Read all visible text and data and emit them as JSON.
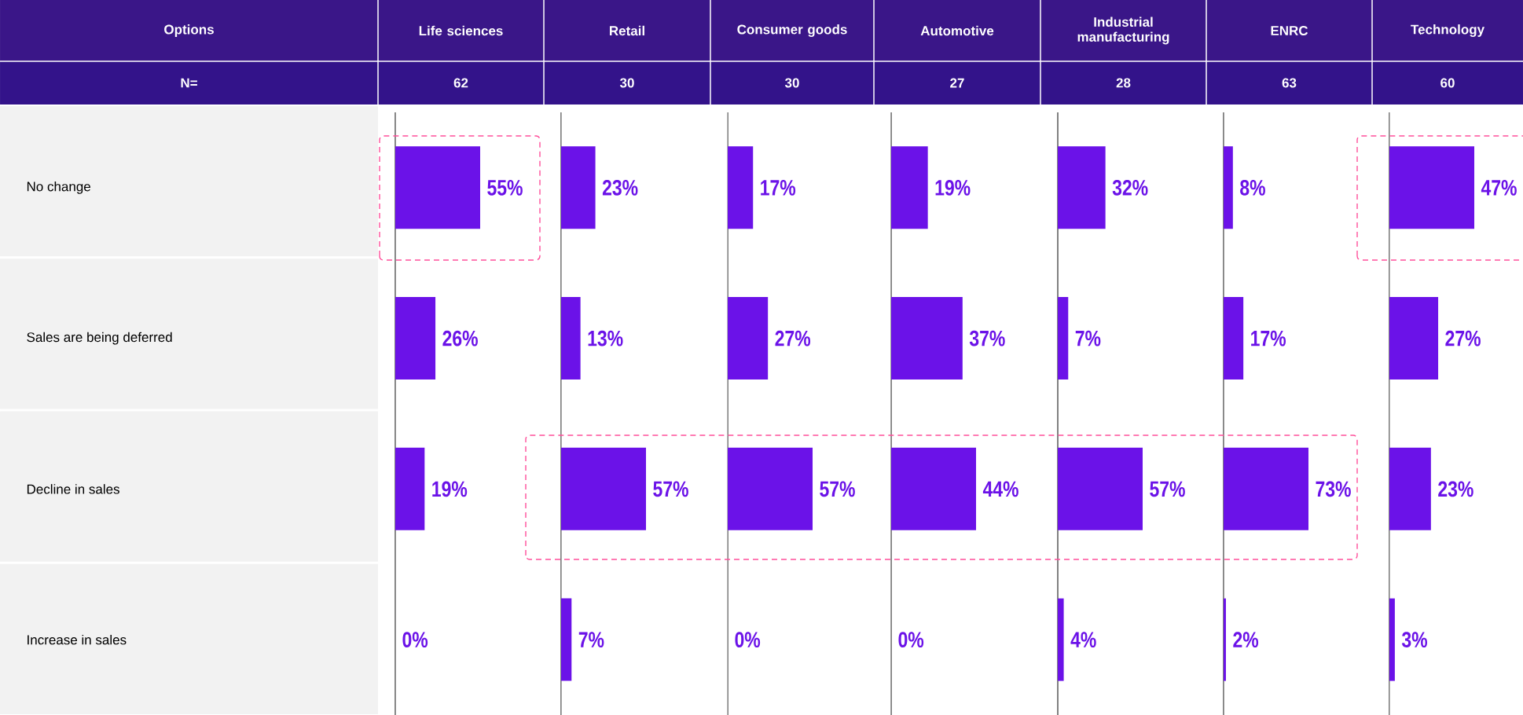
{
  "chart_data": [
    {
      "type": "other",
      "title": "Options",
      "subtitle": "N="
    },
    {
      "type": "bar",
      "orientation": "horizontal",
      "title": "Life sciences",
      "subtitle": "62",
      "categories": [
        "No change",
        "Sales are being deferred",
        "Decline in sales",
        "Increase in sales"
      ],
      "values": [
        55,
        26,
        19,
        0
      ],
      "value_labels": [
        "55%",
        "26%",
        "19%",
        "0%"
      ],
      "color": "#6b12e8",
      "tick_labels": "y"
    },
    {
      "type": "bar",
      "orientation": "horizontal",
      "title": "Retail",
      "subtitle": "30",
      "categories": [
        null,
        null,
        null,
        null
      ],
      "values": [
        23,
        13,
        57,
        7
      ],
      "value_labels": [
        "23%",
        "13%",
        "57%",
        "7%"
      ],
      "color": "#6b12e8",
      "tick_labels": false
    },
    {
      "type": "bar",
      "orientation": "horizontal",
      "title": "Consumer goods",
      "subtitle": "30",
      "categories": [
        null,
        null,
        null,
        null
      ],
      "values": [
        17,
        27,
        57,
        0
      ],
      "value_labels": [
        "17%",
        "27%",
        "57%",
        "0%"
      ],
      "color": "#6b12e8",
      "tick_labels": false
    },
    {
      "type": "bar",
      "orientation": "horizontal",
      "title": "Automotive",
      "subtitle": "27",
      "categories": [
        null,
        null,
        null,
        null
      ],
      "values": [
        19,
        37,
        44,
        0
      ],
      "value_labels": [
        "19%",
        "37%",
        "44%",
        "0%"
      ],
      "color": "#6b12e8",
      "tick_labels": false
    },
    {
      "type": "bar",
      "orientation": "horizontal",
      "title": "Industrial manufacturing",
      "subtitle": "28",
      "categories": [
        null,
        null,
        null,
        null
      ],
      "values": [
        32,
        7,
        57,
        4
      ],
      "value_labels": [
        "32%",
        "7%",
        "57%",
        "4%"
      ],
      "color": "#6b12e8",
      "tick_labels": false
    },
    {
      "type": "bar",
      "orientation": "horizontal",
      "title": "ENRC",
      "subtitle": "63",
      "categories": [
        null,
        null,
        null,
        null
      ],
      "values": [
        8,
        17,
        73,
        2
      ],
      "value_labels": [
        "8%",
        "17%",
        "73%",
        "2%"
      ],
      "color": "#6b12e8",
      "tick_labels": false
    },
    {
      "type": "bar",
      "orientation": "horizontal",
      "title": "Technology",
      "subtitle": "60",
      "categories": [
        null,
        null,
        null,
        null
      ],
      "values": [
        47,
        27,
        23,
        3
      ],
      "value_labels": [
        "47%",
        "27%",
        "23%",
        "3%"
      ],
      "color": "#6b12e8",
      "tick_labels": false
    }
  ]
}
